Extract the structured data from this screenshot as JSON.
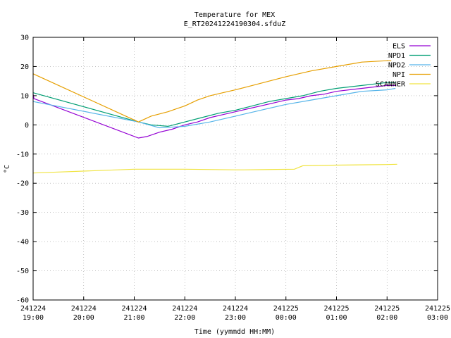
{
  "chart_data": {
    "type": "line",
    "title": "Temperature for MEX",
    "subtitle": "E_RT20241224190304.sfduZ",
    "xlabel": "Time (yymmdd HH:MM)",
    "ylabel": "°C",
    "ylim": [
      -60,
      30
    ],
    "yticks": [
      "30",
      "20",
      "10",
      "0",
      "-10",
      "-20",
      "-30",
      "-40",
      "-50",
      "-60"
    ],
    "xlim": [
      "241224 19:00",
      "241225 03:00"
    ],
    "xticks": [
      {
        "date": "241224",
        "time": "19:00"
      },
      {
        "date": "241224",
        "time": "20:00"
      },
      {
        "date": "241224",
        "time": "21:00"
      },
      {
        "date": "241224",
        "time": "22:00"
      },
      {
        "date": "241224",
        "time": "23:00"
      },
      {
        "date": "241225",
        "time": "00:00"
      },
      {
        "date": "241225",
        "time": "01:00"
      },
      {
        "date": "241225",
        "time": "02:00"
      },
      {
        "date": "241225",
        "time": "03:00"
      }
    ],
    "grid": true,
    "legend_position": "top-right",
    "series": [
      {
        "name": "ELS",
        "color": "#9400d3",
        "points": [
          [
            "241224 19:00",
            10.5
          ],
          [
            "241224 19:01",
            9
          ],
          [
            "241224 21:05",
            -4.5
          ],
          [
            "241224 21:15",
            -4
          ],
          [
            "241224 21:30",
            -2.5
          ],
          [
            "241224 21:45",
            -1.5
          ],
          [
            "241224 22:00",
            0
          ],
          [
            "241224 22:15",
            1
          ],
          [
            "241224 22:30",
            2.5
          ],
          [
            "241224 22:45",
            3.5
          ],
          [
            "241224 23:00",
            4.5
          ],
          [
            "241224 23:15",
            5.5
          ],
          [
            "241224 23:30",
            6.5
          ],
          [
            "241224 23:45",
            7.5
          ],
          [
            "241225 00:00",
            8.5
          ],
          [
            "241225 00:15",
            9
          ],
          [
            "241225 00:30",
            10
          ],
          [
            "241225 00:45",
            10.5
          ],
          [
            "241225 01:00",
            11.5
          ],
          [
            "241225 01:30",
            12.5
          ],
          [
            "241225 02:00",
            13.5
          ],
          [
            "241225 02:10",
            13.5
          ]
        ]
      },
      {
        "name": "NPD1",
        "color": "#009e73",
        "points": [
          [
            "241224 19:00",
            11
          ],
          [
            "241224 21:05",
            1
          ],
          [
            "241224 21:20",
            0
          ],
          [
            "241224 21:40",
            -0.5
          ],
          [
            "241224 22:00",
            1
          ],
          [
            "241224 22:20",
            2.5
          ],
          [
            "241224 22:40",
            4
          ],
          [
            "241224 23:00",
            5
          ],
          [
            "241224 23:20",
            6.5
          ],
          [
            "241224 23:40",
            8
          ],
          [
            "241225 00:00",
            9
          ],
          [
            "241225 00:20",
            10
          ],
          [
            "241225 00:40",
            11.5
          ],
          [
            "241225 01:00",
            12.5
          ],
          [
            "241225 01:30",
            13.5
          ],
          [
            "241225 02:00",
            14.5
          ],
          [
            "241225 02:10",
            14.5
          ]
        ]
      },
      {
        "name": "NPD2",
        "color": "#56b4e9",
        "points": [
          [
            "241224 19:00",
            8
          ],
          [
            "241224 21:05",
            1
          ],
          [
            "241224 21:30",
            -1
          ],
          [
            "241224 22:00",
            -0.5
          ],
          [
            "241224 22:30",
            1
          ],
          [
            "241224 23:00",
            3
          ],
          [
            "241224 23:30",
            5
          ],
          [
            "241225 00:00",
            7
          ],
          [
            "241225 00:30",
            8.5
          ],
          [
            "241225 01:00",
            10
          ],
          [
            "241225 01:30",
            11.5
          ],
          [
            "241225 02:00",
            12
          ],
          [
            "241225 02:10",
            12.5
          ]
        ]
      },
      {
        "name": "NPI",
        "color": "#e69f00",
        "points": [
          [
            "241224 19:00",
            17.5
          ],
          [
            "241224 21:05",
            1
          ],
          [
            "241224 21:20",
            3
          ],
          [
            "241224 21:40",
            4.5
          ],
          [
            "241224 22:00",
            6.5
          ],
          [
            "241224 22:15",
            8.5
          ],
          [
            "241224 22:30",
            10
          ],
          [
            "241224 22:45",
            11
          ],
          [
            "241224 23:00",
            12
          ],
          [
            "241224 23:20",
            13.5
          ],
          [
            "241224 23:40",
            15
          ],
          [
            "241225 00:00",
            16.5
          ],
          [
            "241225 00:30",
            18.5
          ],
          [
            "241225 01:00",
            20
          ],
          [
            "241225 01:30",
            21.5
          ],
          [
            "241225 02:00",
            22
          ],
          [
            "241225 02:05",
            22
          ]
        ]
      },
      {
        "name": "SCANNER",
        "color": "#f0e442",
        "points": [
          [
            "241224 19:00",
            -16.5
          ],
          [
            "241224 21:00",
            -15.2
          ],
          [
            "241224 22:00",
            -15.2
          ],
          [
            "241224 23:00",
            -15.4
          ],
          [
            "241224 23:10",
            -15.4
          ],
          [
            "241225 00:10",
            -15.2
          ],
          [
            "241225 00:20",
            -14
          ],
          [
            "241225 01:00",
            -13.8
          ],
          [
            "241225 02:00",
            -13.6
          ],
          [
            "241225 02:12",
            -13.5
          ]
        ]
      }
    ]
  }
}
